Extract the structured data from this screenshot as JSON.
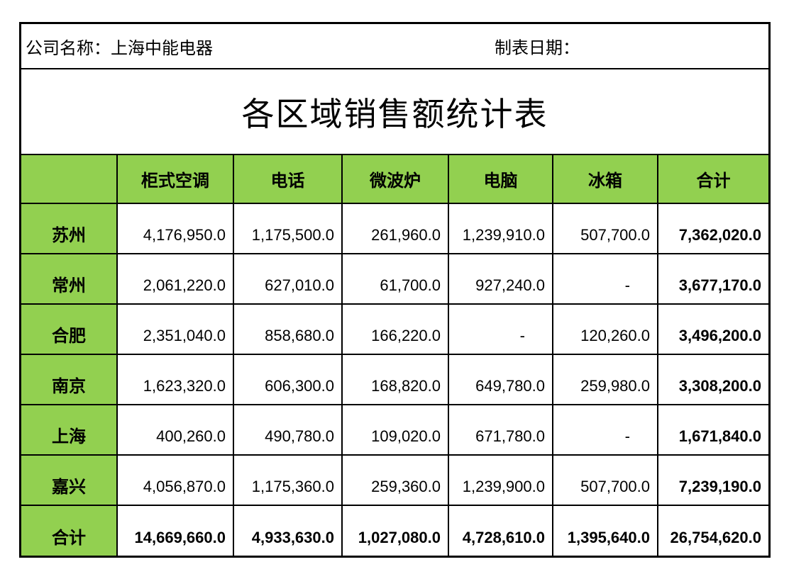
{
  "meta": {
    "company_label": "公司名称：",
    "company_name": "上海中能电器",
    "date_label": "制表日期："
  },
  "title": "各区域销售额统计表",
  "table": {
    "columns": [
      "",
      "柜式空调",
      "电话",
      "微波炉",
      "电脑",
      "冰箱",
      "合计"
    ],
    "rows": [
      {
        "label": "苏州",
        "values": [
          "4,176,950.0",
          "1,175,500.0",
          "261,960.0",
          "1,239,910.0",
          "507,700.0"
        ],
        "total": "7,362,020.0"
      },
      {
        "label": "常州",
        "values": [
          "2,061,220.0",
          "627,010.0",
          "61,700.0",
          "927,240.0",
          "-"
        ],
        "total": "3,677,170.0"
      },
      {
        "label": "合肥",
        "values": [
          "2,351,040.0",
          "858,680.0",
          "166,220.0",
          "-",
          "120,260.0"
        ],
        "total": "3,496,200.0"
      },
      {
        "label": "南京",
        "values": [
          "1,623,320.0",
          "606,300.0",
          "168,820.0",
          "649,780.0",
          "259,980.0"
        ],
        "total": "3,308,200.0"
      },
      {
        "label": "上海",
        "values": [
          "400,260.0",
          "490,780.0",
          "109,020.0",
          "671,780.0",
          "-"
        ],
        "total": "1,671,840.0"
      },
      {
        "label": "嘉兴",
        "values": [
          "4,056,870.0",
          "1,175,360.0",
          "259,360.0",
          "1,239,900.0",
          "507,700.0"
        ],
        "total": "7,239,190.0"
      }
    ],
    "total_row": {
      "label": "合计",
      "values": [
        "14,669,660.0",
        "4,933,630.0",
        "1,027,080.0",
        "4,728,610.0",
        "1,395,640.0"
      ],
      "total": "26,754,620.0"
    }
  },
  "colors": {
    "header_green": "#92D050",
    "border": "#000000",
    "background": "#FFFFFF"
  }
}
